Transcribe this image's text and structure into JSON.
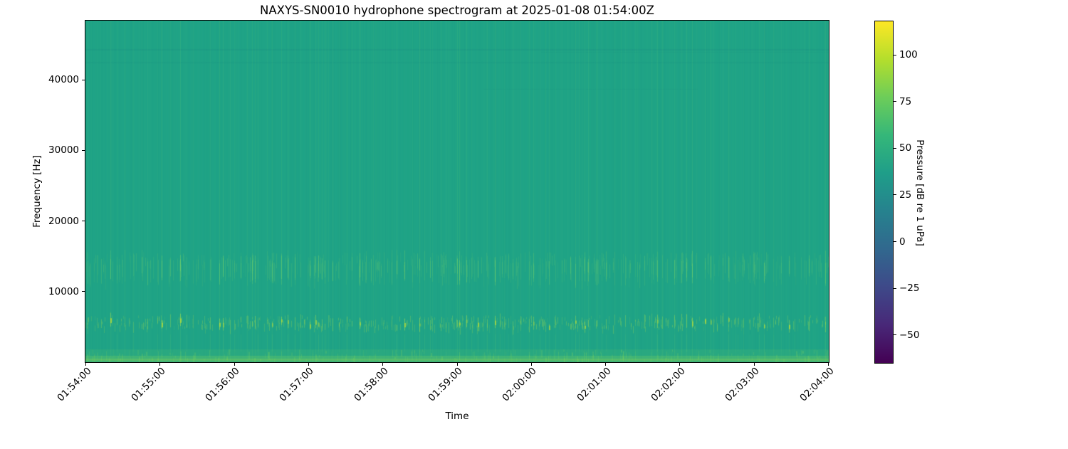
{
  "chart_data": {
    "type": "heatmap",
    "title": "NAXYS-SN0010 hydrophone spectrogram at 2025-01-08 01:54:00Z",
    "xlabel": "Time",
    "ylabel": "Frequency [Hz]",
    "x_axis": {
      "tick_labels": [
        "01:54:00",
        "01:55:00",
        "01:56:00",
        "01:57:00",
        "01:58:00",
        "01:59:00",
        "02:00:00",
        "02:01:00",
        "02:02:00",
        "02:03:00",
        "02:04:00"
      ],
      "start": "01:54:00",
      "end": "02:04:00",
      "tick_rotation_deg": 45
    },
    "y_axis": {
      "tick_values": [
        10000,
        20000,
        30000,
        40000
      ],
      "range_hz": [
        0,
        48400
      ]
    },
    "colorbar": {
      "label": "Pressure [dB re 1 uPa]",
      "tick_values": [
        100,
        75,
        50,
        25,
        0,
        -25,
        -50
      ],
      "value_range": [
        -65,
        118
      ],
      "colormap": "viridis",
      "stops": [
        "#440154",
        "#482878",
        "#3e4989",
        "#31688e",
        "#26828e",
        "#1f9e89",
        "#35b779",
        "#6dcd59",
        "#b4de2c",
        "#fde725"
      ]
    },
    "content": {
      "background_level_db": 48,
      "features": [
        {
          "name": "low-frequency-strip",
          "freq_hz": [
            0,
            2200
          ],
          "level_db": 58,
          "description": "continuous slightly brighter strip along the bottom edge of the band"
        },
        {
          "name": "impulsive-transients-low",
          "freq_hz": [
            4000,
            7000
          ],
          "peak_level_db": 80,
          "description": "bright vertical transient streaks every few seconds, strongest between 4 and 7 kHz"
        },
        {
          "name": "impulsive-transients-mid",
          "freq_hz": [
            11000,
            16000
          ],
          "peak_level_db": 65,
          "description": "dense band of fainter vertical streaks"
        },
        {
          "name": "broadband-streaks",
          "freq_hz": [
            0,
            48400
          ],
          "peak_level_db": 54,
          "description": "faint full-height vertical streaks aligned with the transients"
        },
        {
          "name": "high-frequency-banding",
          "freq_hz": [
            43000,
            45500
          ],
          "level_db": 46,
          "description": "very subtle darker horizontal banding near 44 kHz"
        }
      ]
    },
    "render": {
      "seed": 20250108,
      "base_color": "#1fa386",
      "faint_streak_rgb": "110,215,120",
      "mid_streak_rgb": "135,220,100",
      "low_streak_rgb": "170,225,75",
      "hot_spot_rgb": "215,232,40",
      "bottom_strip_rgb": "140,220,85",
      "dark_band_rgb": "18,110,126",
      "frame_color": "#000000",
      "text_color": "#000000",
      "figure_bg": "#ffffff"
    }
  }
}
